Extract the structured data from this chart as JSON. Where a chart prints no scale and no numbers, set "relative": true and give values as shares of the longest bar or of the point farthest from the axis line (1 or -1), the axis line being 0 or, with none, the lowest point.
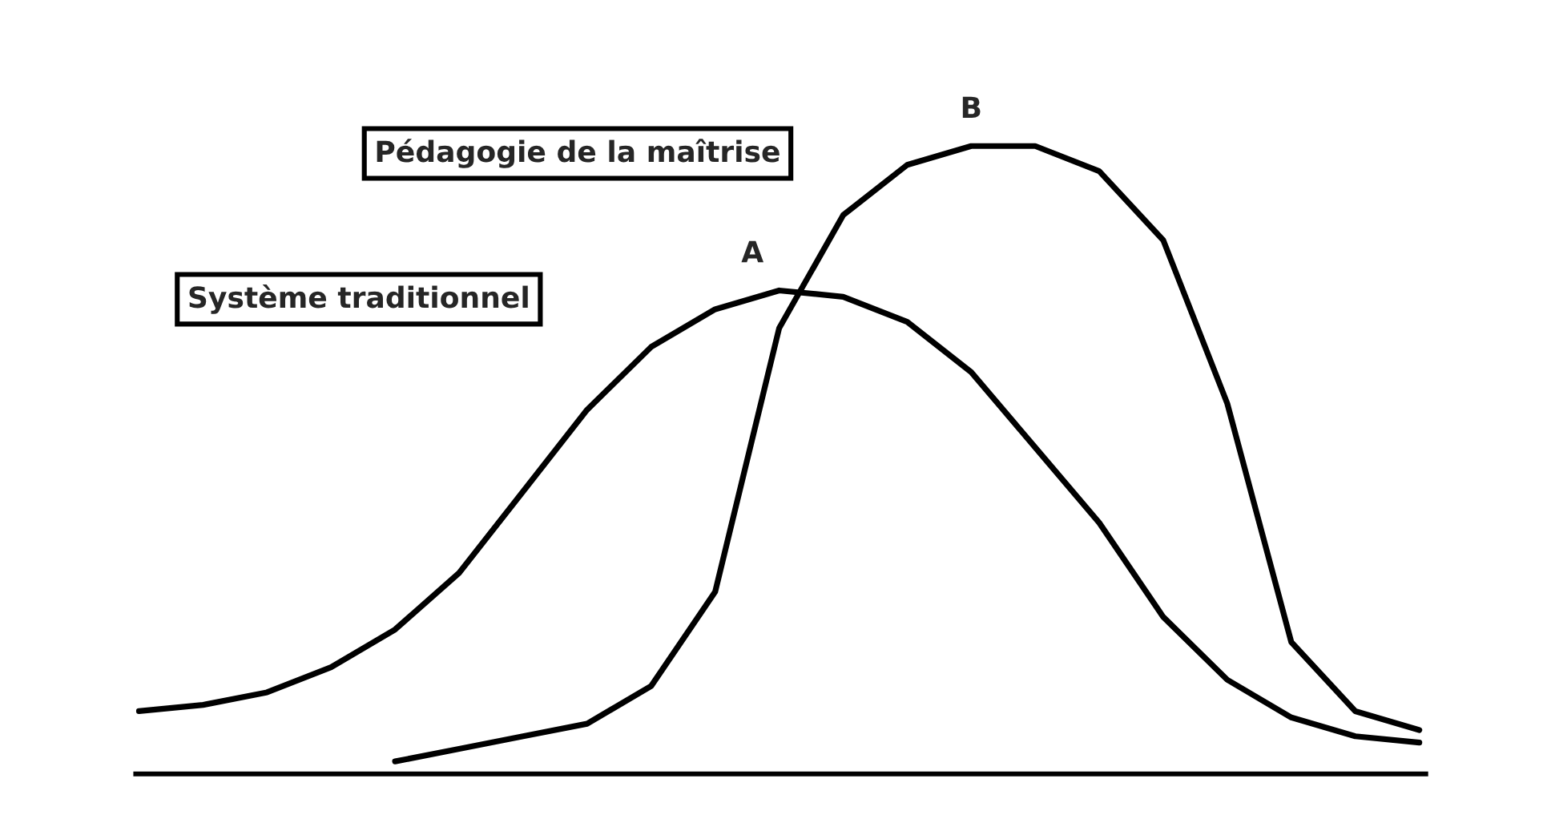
{
  "chart_data": {
    "type": "line",
    "relative": true,
    "legend": false,
    "marker": "none",
    "line_style": "solid",
    "categories": [
      null,
      null,
      null,
      null,
      null,
      null,
      null,
      null,
      null,
      null,
      null,
      null,
      null,
      null,
      null,
      null,
      null,
      null,
      null,
      null,
      null
    ],
    "series": [
      {
        "name": "Système traditionnel",
        "color": "#000000",
        "values": [
          0.1,
          0.11,
          0.13,
          0.17,
          0.23,
          0.32,
          0.45,
          0.58,
          0.68,
          0.74,
          0.77,
          0.76,
          0.72,
          0.64,
          0.52,
          0.4,
          0.25,
          0.15,
          0.09,
          0.06,
          0.05
        ]
      },
      {
        "name": "Pédagogie de la maîtrise",
        "color": "#000000",
        "values": [
          null,
          null,
          null,
          null,
          0.02,
          0.04,
          0.06,
          0.08,
          0.14,
          0.29,
          0.71,
          0.89,
          0.97,
          1.0,
          1.0,
          0.96,
          0.85,
          0.59,
          0.21,
          0.1,
          0.07
        ]
      }
    ],
    "annotations": [
      "A",
      "B"
    ]
  }
}
